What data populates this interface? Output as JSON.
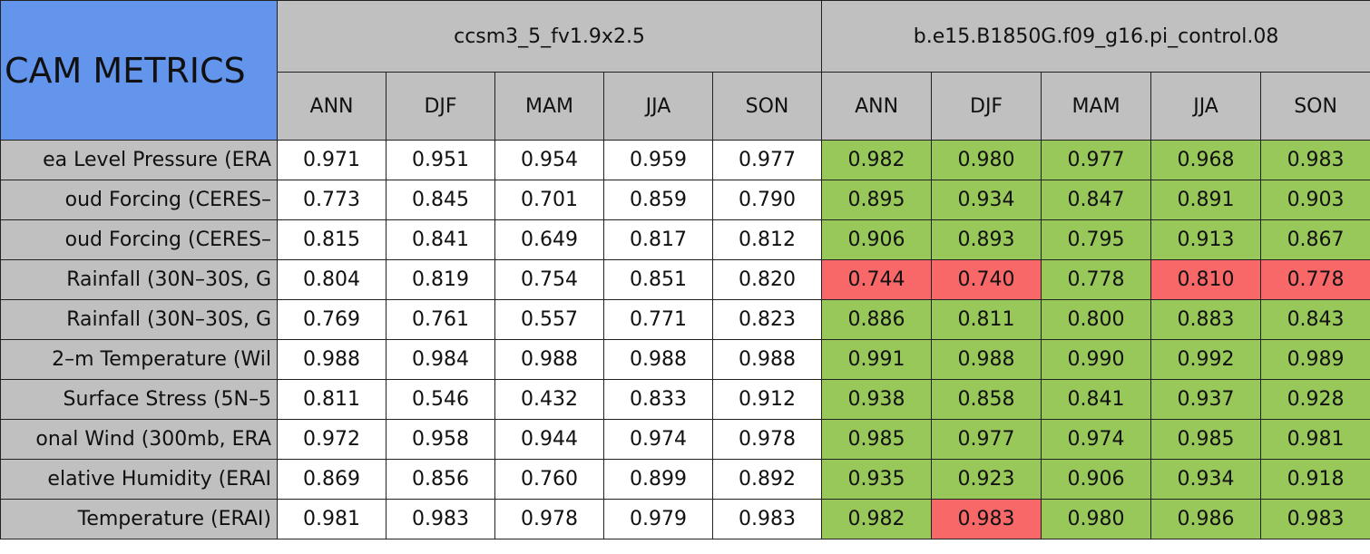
{
  "header": {
    "title": "CAM METRICS",
    "groups": [
      {
        "name": "ccsm3_5_fv1.9x2.5",
        "seasons": [
          "ANN",
          "DJF",
          "MAM",
          "JJA",
          "SON"
        ]
      },
      {
        "name": "b.e15.B1850G.f09_g16.pi_control.08",
        "seasons": [
          "ANN",
          "DJF",
          "MAM",
          "JJA",
          "SON"
        ]
      }
    ],
    "title_color": "#6495ed",
    "header_color": "#c0c0c0"
  },
  "table": {
    "rows": [
      {
        "label": "ea Level Pressure (ERA",
        "values": [
          "0.971",
          "0.951",
          "0.954",
          "0.959",
          "0.977",
          "0.982",
          "0.980",
          "0.977",
          "0.968",
          "0.983"
        ],
        "colors": [
          "#ffffff",
          "#ffffff",
          "#ffffff",
          "#ffffff",
          "#ffffff",
          "#99c85a",
          "#99c85a",
          "#99c85a",
          "#99c85a",
          "#99c85a"
        ]
      },
      {
        "label": "oud Forcing (CERES–",
        "values": [
          "0.773",
          "0.845",
          "0.701",
          "0.859",
          "0.790",
          "0.895",
          "0.934",
          "0.847",
          "0.891",
          "0.903"
        ],
        "colors": [
          "#ffffff",
          "#ffffff",
          "#ffffff",
          "#ffffff",
          "#ffffff",
          "#99c85a",
          "#99c85a",
          "#99c85a",
          "#99c85a",
          "#99c85a"
        ]
      },
      {
        "label": "oud Forcing (CERES–",
        "values": [
          "0.815",
          "0.841",
          "0.649",
          "0.817",
          "0.812",
          "0.906",
          "0.893",
          "0.795",
          "0.913",
          "0.867"
        ],
        "colors": [
          "#ffffff",
          "#ffffff",
          "#ffffff",
          "#ffffff",
          "#ffffff",
          "#99c85a",
          "#99c85a",
          "#99c85a",
          "#99c85a",
          "#99c85a"
        ]
      },
      {
        "label": "Rainfall (30N–30S, G",
        "values": [
          "0.804",
          "0.819",
          "0.754",
          "0.851",
          "0.820",
          "0.744",
          "0.740",
          "0.778",
          "0.810",
          "0.778"
        ],
        "colors": [
          "#ffffff",
          "#ffffff",
          "#ffffff",
          "#ffffff",
          "#ffffff",
          "#f86868",
          "#f86868",
          "#99c85a",
          "#f86868",
          "#f86868"
        ]
      },
      {
        "label": "Rainfall (30N–30S, G",
        "values": [
          "0.769",
          "0.761",
          "0.557",
          "0.771",
          "0.823",
          "0.886",
          "0.811",
          "0.800",
          "0.883",
          "0.843"
        ],
        "colors": [
          "#ffffff",
          "#ffffff",
          "#ffffff",
          "#ffffff",
          "#ffffff",
          "#99c85a",
          "#99c85a",
          "#99c85a",
          "#99c85a",
          "#99c85a"
        ]
      },
      {
        "label": "2–m Temperature (Wil",
        "values": [
          "0.988",
          "0.984",
          "0.988",
          "0.988",
          "0.988",
          "0.991",
          "0.988",
          "0.990",
          "0.992",
          "0.989"
        ],
        "colors": [
          "#ffffff",
          "#ffffff",
          "#ffffff",
          "#ffffff",
          "#ffffff",
          "#99c85a",
          "#99c85a",
          "#99c85a",
          "#99c85a",
          "#99c85a"
        ]
      },
      {
        "label": "Surface Stress (5N–5",
        "values": [
          "0.811",
          "0.546",
          "0.432",
          "0.833",
          "0.912",
          "0.938",
          "0.858",
          "0.841",
          "0.937",
          "0.928"
        ],
        "colors": [
          "#ffffff",
          "#ffffff",
          "#ffffff",
          "#ffffff",
          "#ffffff",
          "#99c85a",
          "#99c85a",
          "#99c85a",
          "#99c85a",
          "#99c85a"
        ]
      },
      {
        "label": "onal Wind (300mb, ERA",
        "values": [
          "0.972",
          "0.958",
          "0.944",
          "0.974",
          "0.978",
          "0.985",
          "0.977",
          "0.974",
          "0.985",
          "0.981"
        ],
        "colors": [
          "#ffffff",
          "#ffffff",
          "#ffffff",
          "#ffffff",
          "#ffffff",
          "#99c85a",
          "#99c85a",
          "#99c85a",
          "#99c85a",
          "#99c85a"
        ]
      },
      {
        "label": "elative Humidity (ERAI",
        "values": [
          "0.869",
          "0.856",
          "0.760",
          "0.899",
          "0.892",
          "0.935",
          "0.923",
          "0.906",
          "0.934",
          "0.918"
        ],
        "colors": [
          "#ffffff",
          "#ffffff",
          "#ffffff",
          "#ffffff",
          "#ffffff",
          "#99c85a",
          "#99c85a",
          "#99c85a",
          "#99c85a",
          "#99c85a"
        ]
      },
      {
        "label": "Temperature (ERAI)",
        "values": [
          "0.981",
          "0.983",
          "0.978",
          "0.979",
          "0.983",
          "0.982",
          "0.983",
          "0.980",
          "0.986",
          "0.983"
        ],
        "colors": [
          "#ffffff",
          "#ffffff",
          "#ffffff",
          "#ffffff",
          "#ffffff",
          "#99c85a",
          "#f86868",
          "#99c85a",
          "#99c85a",
          "#99c85a"
        ]
      }
    ]
  }
}
